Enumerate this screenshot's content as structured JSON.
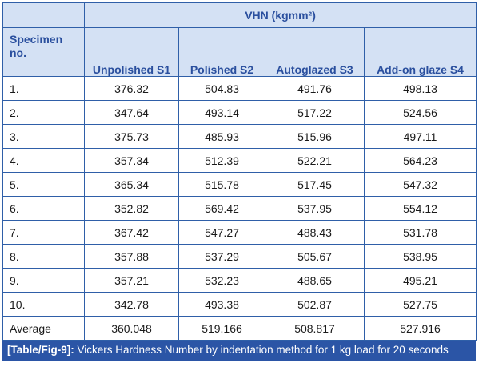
{
  "table": {
    "title": "VHN (kgmm²)",
    "headers": [
      "Specimen no.",
      "Unpolished S1",
      "Polished S2",
      "Autoglazed S3",
      "Add-on glaze S4"
    ],
    "header_first_line1": "Specimen",
    "header_first_line2": "no.",
    "rows": [
      [
        "1.",
        "376.32",
        "504.83",
        "491.76",
        "498.13"
      ],
      [
        "2.",
        "347.64",
        "493.14",
        "517.22",
        "524.56"
      ],
      [
        "3.",
        "375.73",
        "485.93",
        "515.96",
        "497.11"
      ],
      [
        "4.",
        "357.34",
        "512.39",
        "522.21",
        "564.23"
      ],
      [
        "5.",
        "365.34",
        "515.78",
        "517.45",
        "547.32"
      ],
      [
        "6.",
        "352.82",
        "569.42",
        "537.95",
        "554.12"
      ],
      [
        "7.",
        "367.42",
        "547.27",
        "488.43",
        "531.78"
      ],
      [
        "8.",
        "357.88",
        "537.29",
        "505.67",
        "538.95"
      ],
      [
        "9.",
        "357.21",
        "532.23",
        "488.65",
        "495.21"
      ],
      [
        "10.",
        "342.78",
        "493.38",
        "502.87",
        "527.75"
      ],
      [
        "Average",
        "360.048",
        "519.166",
        "508.817",
        "527.916"
      ]
    ]
  },
  "caption": {
    "label": "[Table/Fig-9]:",
    "text": " Vickers Hardness Number by indentation method for 1 kg load for 20 seconds"
  },
  "colors": {
    "border": "#2f5fa8",
    "header_bg": "#d4e1f4",
    "header_text": "#2a4f9e",
    "caption_bg": "#2b55a6"
  }
}
